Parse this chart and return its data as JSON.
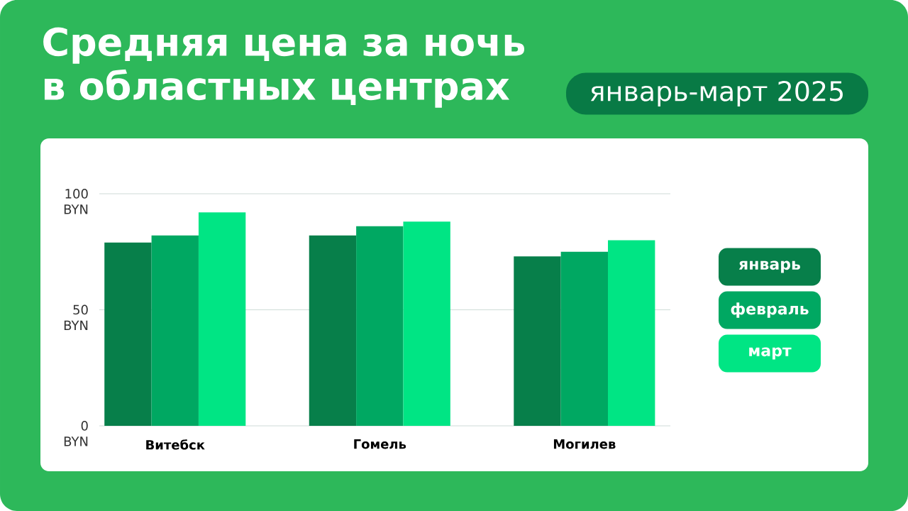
{
  "chart_data": {
    "type": "bar",
    "title": "Средняя цена за ночь в областных центрах",
    "subtitle": "январь-март 2025",
    "categories": [
      "Витебск",
      "Гомель",
      "Могилев"
    ],
    "series": [
      {
        "name": "январь",
        "color": "#077f4a",
        "values": [
          79,
          82,
          73
        ]
      },
      {
        "name": "февраль",
        "color": "#00a862",
        "values": [
          82,
          86,
          75
        ]
      },
      {
        "name": "март",
        "color": "#00e584",
        "values": [
          92,
          88,
          80
        ]
      }
    ],
    "ylim": [
      0,
      100
    ],
    "yticks": [
      {
        "value": 0,
        "label": "0 BYN"
      },
      {
        "value": 50,
        "label": "50 BYN"
      },
      {
        "value": 100,
        "label": "100 BYN"
      }
    ],
    "grid": "y",
    "legend": "right"
  }
}
